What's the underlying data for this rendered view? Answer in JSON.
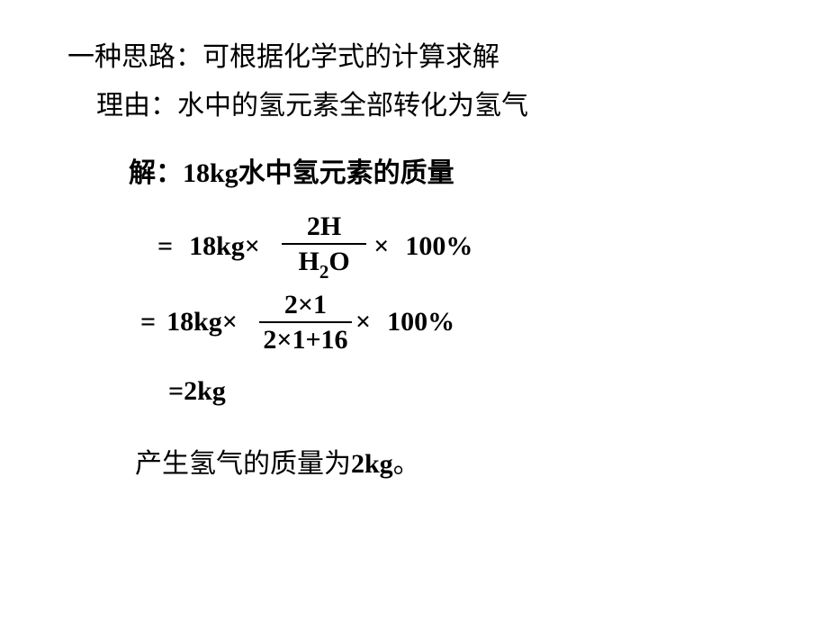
{
  "line1": "一种思路：可根据化学式的计算求解",
  "line2": "理由：水中的氢元素全部转化为氢气",
  "line3_prefix": "解：",
  "line3_mass": "18kg",
  "line3_suffix": "水中氢元素的质量",
  "eq1": {
    "sign": "=",
    "pre_num": "18kg",
    "pre_times": "×",
    "frac_num": "2H",
    "frac_den_h": "H",
    "frac_den_sub": "2",
    "frac_den_o": "O",
    "times": "×",
    "percent": "100%"
  },
  "eq2": {
    "sign": "=",
    "pre_num": "18kg",
    "pre_times": "×",
    "frac_num": "2×1",
    "frac_den": "2×1+16",
    "times": "×",
    "percent": "100%"
  },
  "eq3": "=2kg",
  "conclusion_prefix": "产生氢气的质量为",
  "conclusion_mass": "2kg",
  "conclusion_suffix": "。",
  "colors": {
    "text": "#000000",
    "background": "#ffffff"
  },
  "fontsize_main": 30
}
